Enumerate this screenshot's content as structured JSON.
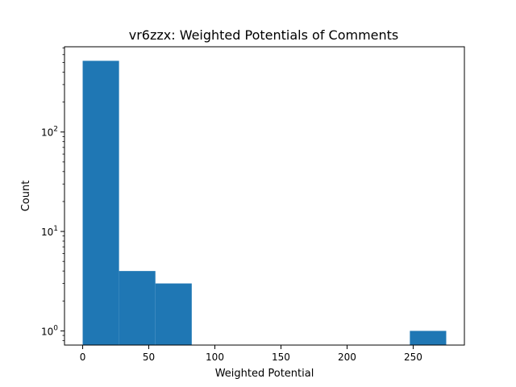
{
  "chart_data": {
    "type": "bar",
    "title": "vr6zzx: Weighted Potentials of Comments",
    "xlabel": "Weighted Potential",
    "ylabel": "Count",
    "y_scale": "log",
    "bar_color": "#1f77b4",
    "bins": [
      {
        "x0": 0.0,
        "x1": 27.5,
        "count": 520
      },
      {
        "x0": 27.5,
        "x1": 55.0,
        "count": 4
      },
      {
        "x0": 55.0,
        "x1": 82.5,
        "count": 3
      },
      {
        "x0": 82.5,
        "x1": 110.0,
        "count": 0
      },
      {
        "x0": 110.0,
        "x1": 137.5,
        "count": 0
      },
      {
        "x0": 137.5,
        "x1": 165.0,
        "count": 0
      },
      {
        "x0": 165.0,
        "x1": 192.5,
        "count": 0
      },
      {
        "x0": 192.5,
        "x1": 220.0,
        "count": 0
      },
      {
        "x0": 220.0,
        "x1": 247.5,
        "count": 0
      },
      {
        "x0": 247.5,
        "x1": 275.0,
        "count": 1
      }
    ],
    "xlim": [
      -13.75,
      288.75
    ],
    "ylim": [
      0.72,
      720
    ],
    "x_ticks": [
      0,
      50,
      100,
      150,
      200,
      250
    ],
    "x_tick_labels": [
      "0",
      "50",
      "100",
      "150",
      "200",
      "250"
    ],
    "y_ticks": [
      1,
      10,
      100
    ],
    "y_tick_labels": [
      {
        "base": "10",
        "exp": "0"
      },
      {
        "base": "10",
        "exp": "1"
      },
      {
        "base": "10",
        "exp": "2"
      }
    ],
    "grid": false,
    "legend": "none"
  }
}
